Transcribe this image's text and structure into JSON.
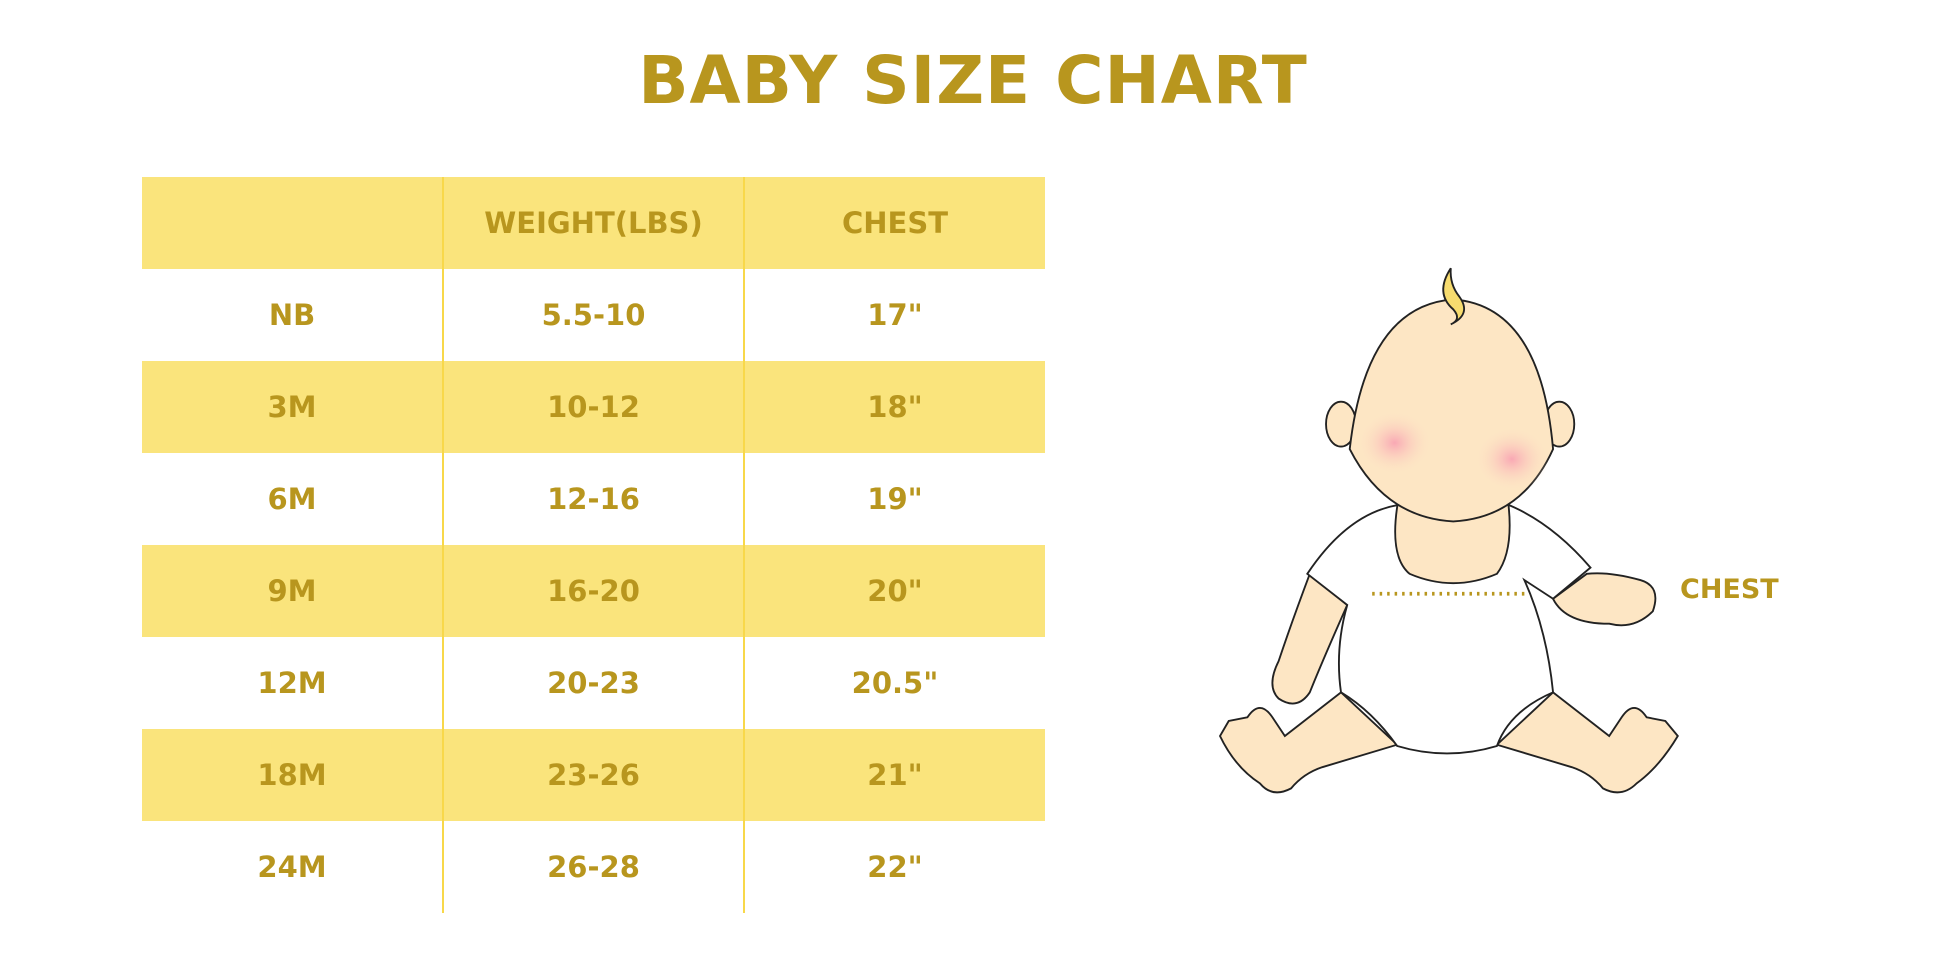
{
  "title": "BABY SIZE CHART",
  "table": {
    "headers": [
      "",
      "WEIGHT(LBS)",
      "CHEST"
    ],
    "rows": [
      [
        "NB",
        "5.5-10",
        "17\""
      ],
      [
        "3M",
        "10-12",
        "18\""
      ],
      [
        "6M",
        "12-16",
        "19\""
      ],
      [
        "9M",
        "16-20",
        "20\""
      ],
      [
        "12M",
        "20-23",
        "20.5\""
      ],
      [
        "18M",
        "23-26",
        "21\""
      ],
      [
        "24M",
        "26-28",
        "22\""
      ]
    ]
  },
  "illustration": {
    "chest_label": "CHEST"
  },
  "colors": {
    "text": "#B8961E",
    "band": "#FAE47C",
    "divider": "#F8D84A",
    "skin": "#FDE6C4"
  }
}
